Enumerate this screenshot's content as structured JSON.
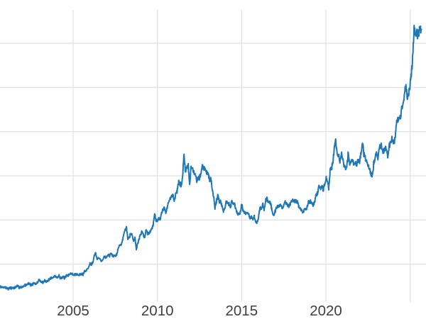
{
  "chart_data": {
    "type": "line",
    "title": "",
    "description": "Gold price time series, late 2000 through 2025 (y-axis value labels cropped out of view on the left)",
    "line_color": "#1f77b4",
    "grid_color": "#e5e5e5",
    "tick_label_color": "#3f3f3f",
    "xlim": [
      2000.66,
      2025.94
    ],
    "ylim": [
      100,
      3640
    ],
    "xticks": [
      {
        "value": 2005,
        "label": "2005"
      },
      {
        "value": 2010,
        "label": "2010"
      },
      {
        "value": 2015,
        "label": "2015"
      },
      {
        "value": 2020,
        "label": "2020"
      },
      {
        "value": 2025,
        "label": ""
      }
    ],
    "ygridlines": [
      558,
      1094,
      1629,
      2165,
      2701,
      3236
    ],
    "series": {
      "name": "price",
      "start_year": 2000.6667,
      "points_per_year": 12,
      "values": [
        286,
        278,
        275,
        281,
        272,
        268,
        262,
        266,
        270,
        273,
        269,
        276,
        290,
        283,
        278,
        280,
        284,
        298,
        303,
        310,
        328,
        320,
        306,
        314,
        325,
        319,
        320,
        349,
        370,
        349,
        336,
        338,
        363,
        348,
        356,
        377,
        390,
        386,
        400,
        418,
        402,
        398,
        425,
        390,
        395,
        397,
        393,
        412,
        417,
        427,
        455,
        440,
        424,
        437,
        430,
        437,
        420,
        439,
        431,
        435,
        475,
        472,
        497,
        519,
        570,
        558,
        584,
        656,
        702,
        615,
        634,
        625,
        601,
        606,
        649,
        638,
        653,
        667,
        663,
        679,
        661,
        652,
        667,
        674,
        745,
        791,
        785,
        836,
        923,
        971,
        1005,
        871,
        885,
        930,
        918,
        833,
        884,
        730,
        814,
        869,
        919,
        952,
        916,
        883,
        975,
        934,
        939,
        955,
        995,
        1040,
        1175,
        1087,
        1078,
        1118,
        1115,
        1179,
        1215,
        1244,
        1169,
        1246,
        1307,
        1346,
        1383,
        1410,
        1327,
        1411,
        1439,
        1556,
        1536,
        1500,
        1628,
        1900,
        1660,
        1722,
        1746,
        1531,
        1737,
        1711,
        1668,
        1664,
        1558,
        1598,
        1614,
        1648,
        1776,
        1719,
        1715,
        1675,
        1661,
        1588,
        1598,
        1469,
        1394,
        1235,
        1313,
        1395,
        1327,
        1324,
        1253,
        1205,
        1244,
        1326,
        1291,
        1288,
        1250,
        1327,
        1285,
        1287,
        1208,
        1173,
        1175,
        1184,
        1283,
        1213,
        1184,
        1180,
        1190,
        1171,
        1095,
        1135,
        1115,
        1142,
        1061,
        1060,
        1116,
        1234,
        1232,
        1290,
        1212,
        1320,
        1351,
        1309,
        1317,
        1272,
        1178,
        1152,
        1210,
        1248,
        1249,
        1268,
        1269,
        1242,
        1267,
        1321,
        1280,
        1271,
        1275,
        1303,
        1345,
        1318,
        1325,
        1315,
        1298,
        1253,
        1224,
        1201,
        1192,
        1215,
        1220,
        1282,
        1321,
        1313,
        1292,
        1283,
        1305,
        1409,
        1414,
        1520,
        1472,
        1513,
        1464,
        1517,
        1589,
        1586,
        1480,
        1687,
        1730,
        1781,
        1976,
        2070,
        1886,
        1879,
        1777,
        1898,
        1848,
        1734,
        1708,
        1768,
        1907,
        1771,
        1814,
        1814,
        1757,
        1783,
        1775,
        1829,
        1797,
        1909,
        2020,
        1897,
        1837,
        1807,
        1766,
        1711,
        1661,
        1634,
        1769,
        1824,
        1928,
        1827,
        1980,
        2005,
        1975,
        1919,
        1965,
        1940,
        1849,
        1984,
        2036,
        2085,
        2040,
        2044,
        2240,
        2286,
        2327,
        2327,
        2448,
        2503,
        2635,
        2744,
        2570,
        2605,
        2750,
        2860,
        3124,
        3450,
        3300,
        3350,
        3330,
        3430,
        3400
      ]
    },
    "noise": {
      "seed": 7,
      "subdivisions": 5,
      "pct": 0.016,
      "min_units": 13,
      "gain": 1.5
    },
    "style": {
      "line_width": 2,
      "grid_width": 1.4,
      "tick_font_size": 20.5
    }
  }
}
